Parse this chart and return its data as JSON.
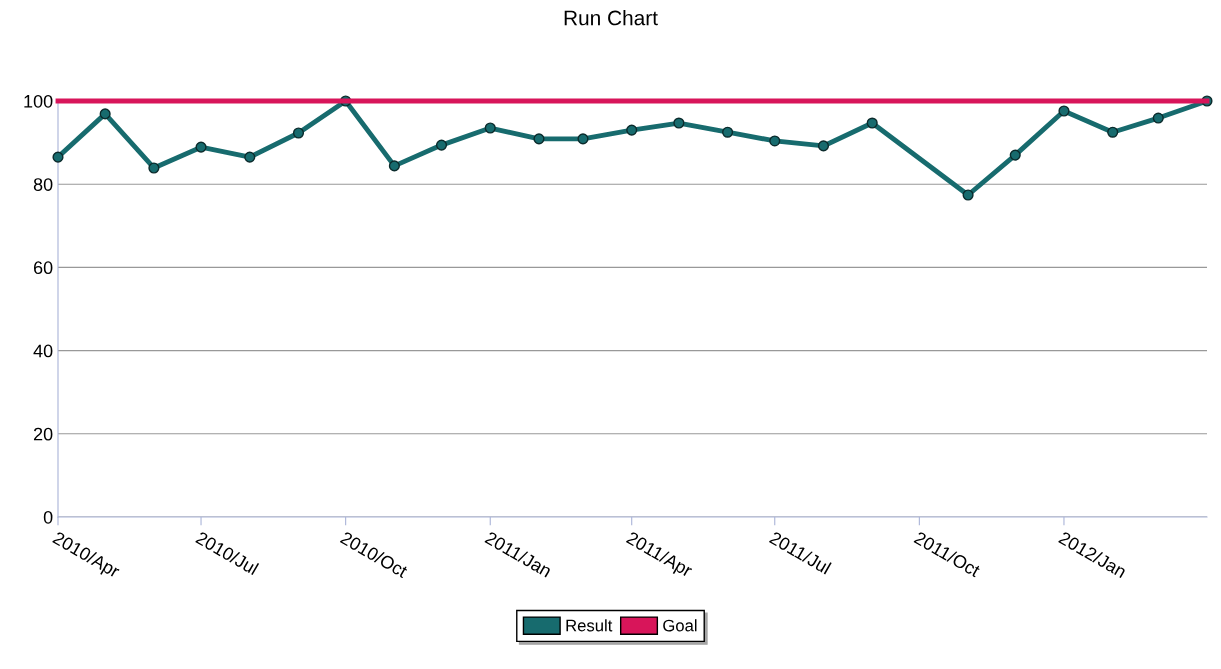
{
  "chart_data": {
    "type": "line",
    "title": "Run Chart",
    "xlim": [
      "2010-04",
      "2012-04"
    ],
    "xticks": [
      {
        "value": "2010-04",
        "label": "2010/Apr"
      },
      {
        "value": "2010-07",
        "label": "2010/Jul"
      },
      {
        "value": "2010-10",
        "label": "2010/Oct"
      },
      {
        "value": "2011-01",
        "label": "2011/Jan"
      },
      {
        "value": "2011-04",
        "label": "2011/Apr"
      },
      {
        "value": "2011-07",
        "label": "2011/Jul"
      },
      {
        "value": "2011-10",
        "label": "2011/Oct"
      },
      {
        "value": "2012-01",
        "label": "2012/Jan"
      }
    ],
    "ylim": [
      0,
      100
    ],
    "yticks": [
      0,
      20,
      40,
      60,
      80,
      100
    ],
    "grid": "y",
    "legend": "bottom",
    "marker": "circle",
    "line_style": "solid",
    "series": [
      {
        "name": "Result",
        "color": "#176b6e",
        "x": [
          "2010-04",
          "2010-05",
          "2010-06",
          "2010-07",
          "2010-08",
          "2010-09",
          "2010-10",
          "2010-11",
          "2010-12",
          "2011-01",
          "2011-02",
          "2011-03",
          "2011-04",
          "2011-05",
          "2011-06",
          "2011-07",
          "2011-08",
          "2011-09",
          "2011-11",
          "2011-12",
          "2012-01",
          "2012-02",
          "2012-03",
          "2012-04"
        ],
        "values": [
          86.5,
          96.9,
          83.9,
          88.9,
          86.5,
          92.3,
          100,
          84.4,
          89.4,
          93.5,
          90.9,
          90.9,
          93.0,
          94.7,
          92.5,
          90.4,
          89.2,
          94.7,
          77.4,
          87.0,
          97.6,
          92.5,
          95.9,
          100
        ]
      },
      {
        "name": "Goal",
        "color": "#d8155a",
        "marker": "none",
        "x": [
          "2010-04",
          "2012-04"
        ],
        "values": [
          100,
          100
        ]
      }
    ]
  }
}
